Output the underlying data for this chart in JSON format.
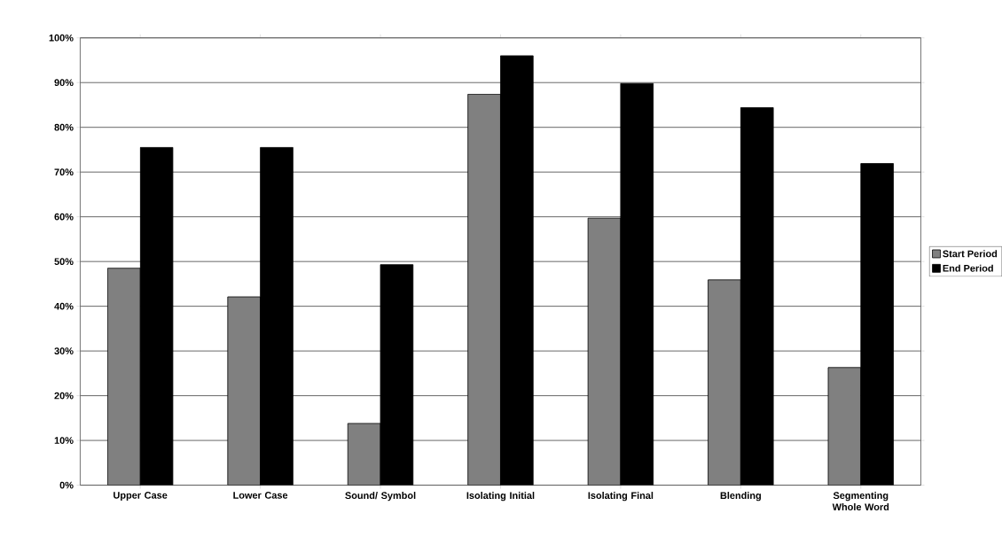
{
  "chart_data": {
    "type": "bar",
    "categories": [
      "Upper Case",
      "Lower Case",
      "Sound/ Symbol",
      "Isolating Initial",
      "Isolating Final",
      "Blending",
      "Segmenting Whole Word"
    ],
    "series": [
      {
        "name": "Start Period",
        "color": "#808080",
        "values": [
          48.5,
          42.1,
          13.8,
          87.4,
          59.7,
          45.9,
          26.3
        ]
      },
      {
        "name": "End Period",
        "color": "#000000",
        "values": [
          75.5,
          75.5,
          49.3,
          96.0,
          89.8,
          84.4,
          71.9
        ]
      }
    ],
    "ylim": [
      0,
      100
    ],
    "yticks": [
      {
        "value": 0,
        "label": "0%"
      },
      {
        "value": 10,
        "label": "10%"
      },
      {
        "value": 20,
        "label": "20%"
      },
      {
        "value": 30,
        "label": "30%"
      },
      {
        "value": 40,
        "label": "40%"
      },
      {
        "value": 50,
        "label": "50%"
      },
      {
        "value": 60,
        "label": "60%"
      },
      {
        "value": 70,
        "label": "70%"
      },
      {
        "value": 80,
        "label": "80%"
      },
      {
        "value": 90,
        "label": "90%"
      },
      {
        "value": 100,
        "label": "100%"
      }
    ],
    "grid": "y",
    "legend": "right"
  }
}
